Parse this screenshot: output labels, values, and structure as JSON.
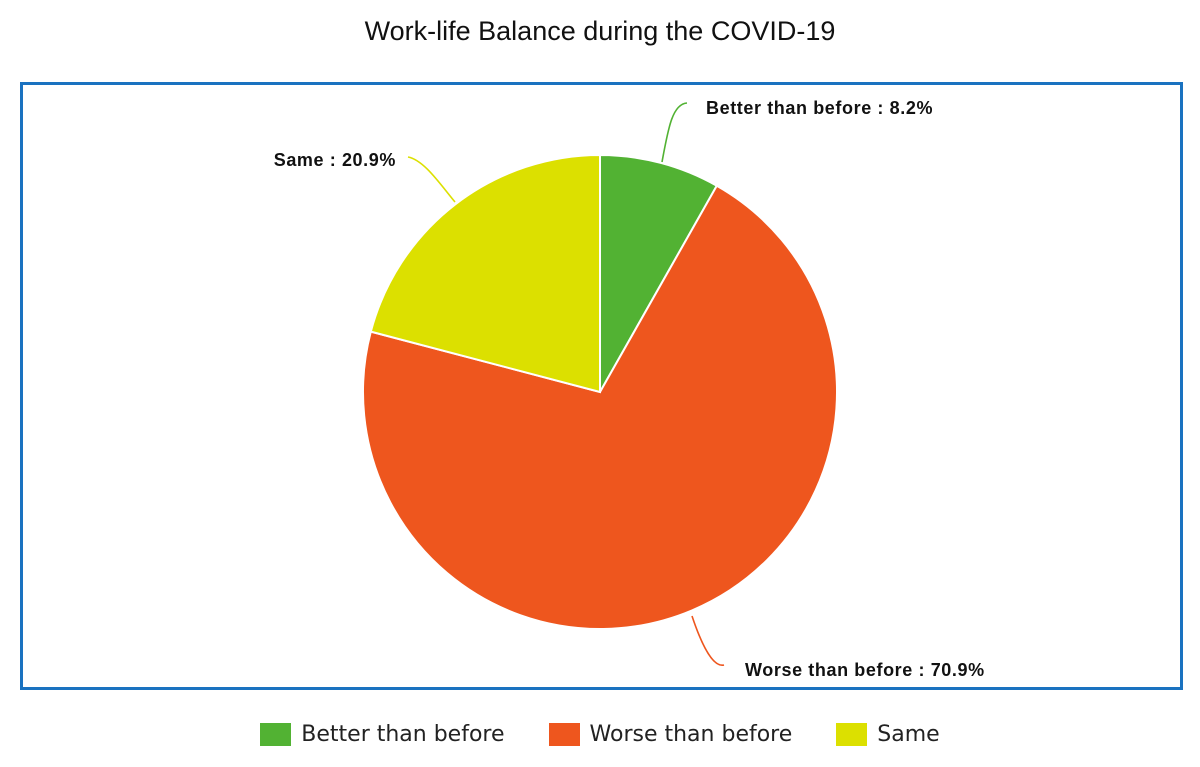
{
  "chart_data": {
    "type": "pie",
    "title": "Work-life Balance during the COVID-19",
    "slices": [
      {
        "label": "Better than before",
        "value": 8.2,
        "value_text": "8.2%",
        "color": "#52b233"
      },
      {
        "label": "Worse than before",
        "value": 70.9,
        "value_text": "70.9%",
        "color": "#ee561e"
      },
      {
        "label": "Same",
        "value": 20.9,
        "value_text": "20.9%",
        "color": "#dce000"
      }
    ],
    "start_angle_deg": 0,
    "direction": "clockwise",
    "legend": {
      "position": "bottom",
      "items": [
        "Better than before",
        "Worse than before",
        "Same"
      ]
    },
    "frame_color": "#1a72c0"
  }
}
